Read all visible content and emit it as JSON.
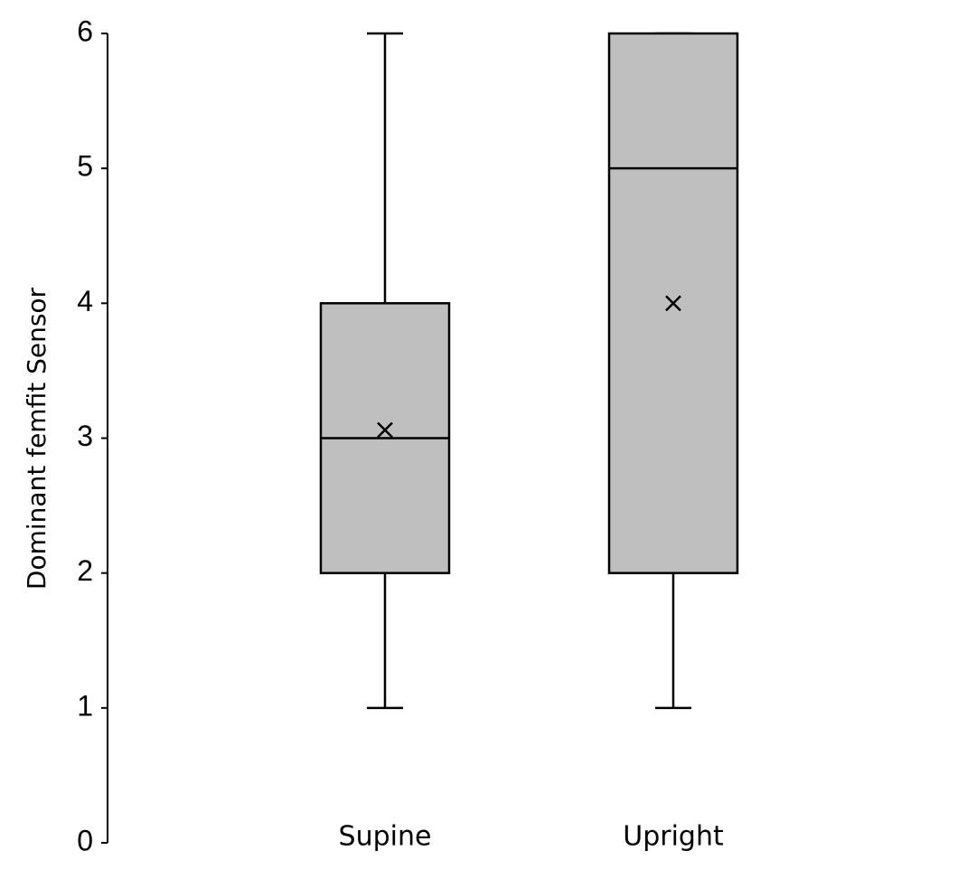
{
  "chart_data": {
    "type": "box",
    "y_label": "Dominant femfit Sensor",
    "categories": [
      "Supine",
      "Upright"
    ],
    "min": [
      1,
      1
    ],
    "q1": [
      2,
      2
    ],
    "median": [
      3,
      5
    ],
    "q3": [
      4,
      6
    ],
    "max": [
      6,
      6
    ],
    "mean": [
      3.06,
      4
    ],
    "color": "#bfbfbf",
    "ylim": [
      0,
      6
    ],
    "yticks": [
      0,
      1,
      2,
      3,
      4,
      5,
      6
    ],
    "grid": false
  }
}
